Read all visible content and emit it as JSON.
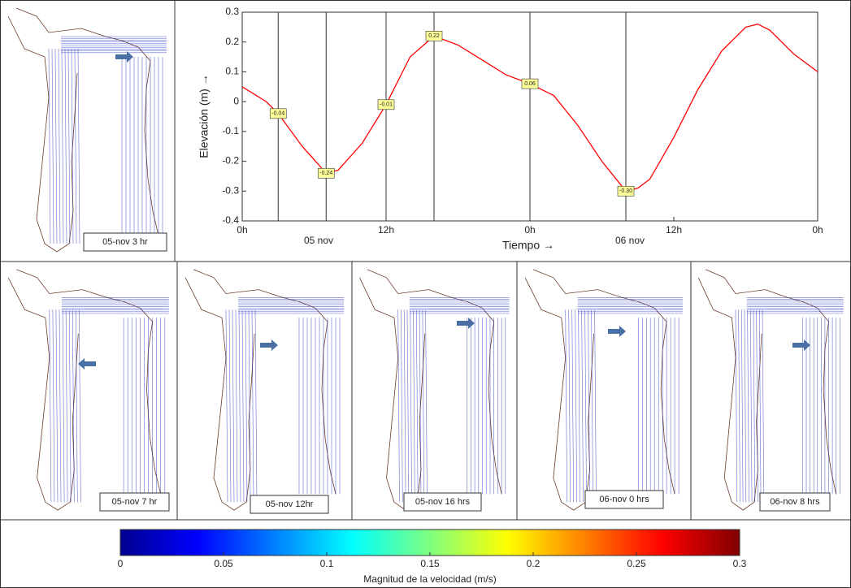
{
  "chart_data": [
    {
      "type": "line",
      "x_label": "Tiempo →",
      "y_label": "Elevación (m) →",
      "x": [
        0,
        2,
        3,
        5,
        7,
        8,
        10,
        12,
        14,
        16,
        18,
        20,
        22,
        24,
        26,
        28,
        30,
        32,
        33,
        34,
        36,
        38,
        40,
        42,
        43,
        44,
        46,
        48
      ],
      "series": [
        {
          "name": "Elevación",
          "color": "#ff0000",
          "values": [
            0.05,
            0.0,
            -0.04,
            -0.15,
            -0.24,
            -0.23,
            -0.14,
            -0.01,
            0.15,
            0.22,
            0.19,
            0.14,
            0.09,
            0.06,
            0.02,
            -0.08,
            -0.2,
            -0.3,
            -0.29,
            -0.26,
            -0.12,
            0.04,
            0.17,
            0.25,
            0.26,
            0.24,
            0.16,
            0.1
          ]
        }
      ],
      "xlim": [
        0,
        48
      ],
      "xticks": [
        {
          "value": 0,
          "label": "0h"
        },
        {
          "value": 12,
          "label": "12h"
        },
        {
          "value": 24,
          "label": "0h"
        },
        {
          "value": 36,
          "label": "12h"
        },
        {
          "value": 48,
          "label": "0h"
        }
      ],
      "date_labels": [
        "05 nov",
        "06 nov"
      ],
      "ylim": [
        -0.4,
        0.3
      ],
      "yticks": [
        0.3,
        0.2,
        0.1,
        0,
        -0.1,
        -0.2,
        -0.3,
        -0.4
      ],
      "annotations": [
        {
          "x": 3,
          "value": -0.04,
          "label": "-0.04"
        },
        {
          "x": 7,
          "value": -0.24,
          "label": "-0.24"
        },
        {
          "x": 12,
          "value": -0.01,
          "label": "-0.01"
        },
        {
          "x": 16,
          "value": 0.22,
          "label": "0.22"
        },
        {
          "x": 24,
          "value": 0.06,
          "label": "0.06"
        },
        {
          "x": 32,
          "value": -0.3,
          "label": "-0.30"
        }
      ]
    },
    {
      "type": "colorbar",
      "title": "Magnitud de la velocidad (m/s)",
      "xlim": [
        0,
        0.3
      ],
      "xticks": [
        0,
        0.05,
        0.1,
        0.15,
        0.2,
        0.25,
        0.3
      ]
    }
  ],
  "panels": [
    {
      "label": "05-nov 3 hr"
    },
    {
      "label": "05-nov 7 hr"
    },
    {
      "label": "05-nov 12hr"
    },
    {
      "label": "05-nov 16 hrs"
    },
    {
      "label": "06-nov 0 hrs"
    },
    {
      "label": "06-nov 8 hrs"
    }
  ]
}
